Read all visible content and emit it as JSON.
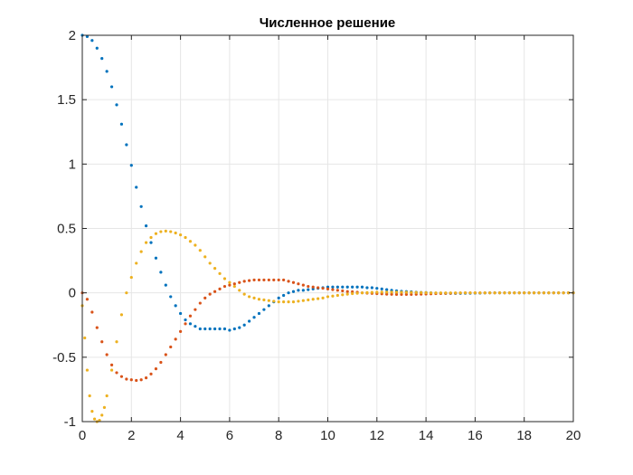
{
  "chart_data": {
    "type": "scatter",
    "title": "Численное решение",
    "xlabel": "",
    "ylabel": "",
    "xlim": [
      0,
      20
    ],
    "ylim": [
      -1,
      2
    ],
    "xticks": [
      0,
      2,
      4,
      6,
      8,
      10,
      12,
      14,
      16,
      18,
      20
    ],
    "yticks": [
      -1,
      -0.5,
      0,
      0.5,
      1,
      1.5,
      2
    ],
    "xtick_labels": [
      "0",
      "2",
      "4",
      "6",
      "8",
      "10",
      "12",
      "14",
      "16",
      "18",
      "20"
    ],
    "ytick_labels": [
      "-1",
      "-0.5",
      "0",
      "0.5",
      "1",
      "1.5",
      "2"
    ],
    "grid": true,
    "legend": "none",
    "series": [
      {
        "color": "#0072BD",
        "x": [
          0,
          0.2,
          0.4,
          0.6,
          0.8,
          1.0,
          1.2,
          1.4,
          1.6,
          1.8,
          2.0,
          2.2,
          2.4,
          2.6,
          2.8,
          3.0,
          3.2,
          3.4,
          3.6,
          3.8,
          4.0,
          4.2,
          4.4,
          4.6,
          4.8,
          5.0,
          5.2,
          5.4,
          5.6,
          5.8,
          6.0,
          6.2,
          6.4,
          6.6,
          6.8,
          7.0,
          7.2,
          7.4,
          7.6,
          7.8,
          8.0,
          8.2,
          8.4,
          8.6,
          8.8,
          9.0,
          9.2,
          9.4,
          9.6,
          9.8,
          10.0,
          10.2,
          10.4,
          10.6,
          10.8,
          11.0,
          11.2,
          11.4,
          11.6,
          11.8,
          12.0,
          12.2,
          12.4,
          12.6,
          12.8,
          13.0,
          13.2,
          13.4,
          13.6,
          13.8,
          14.0,
          14.2,
          14.4,
          14.6,
          14.8,
          15.0,
          15.2,
          15.4,
          15.6,
          15.8,
          16.0,
          16.2,
          16.4,
          16.6,
          16.8,
          17.0,
          17.2,
          17.4,
          17.6,
          17.8,
          18.0,
          18.2,
          18.4,
          18.6,
          18.8,
          19.0,
          19.2,
          19.4,
          19.6,
          19.8,
          20.0
        ],
        "y": [
          2.0,
          1.99,
          1.96,
          1.9,
          1.82,
          1.72,
          1.6,
          1.46,
          1.31,
          1.15,
          0.99,
          0.82,
          0.67,
          0.52,
          0.39,
          0.27,
          0.16,
          0.06,
          -0.03,
          -0.1,
          -0.16,
          -0.21,
          -0.24,
          -0.26,
          -0.28,
          -0.28,
          -0.28,
          -0.28,
          -0.28,
          -0.28,
          -0.29,
          -0.28,
          -0.27,
          -0.25,
          -0.22,
          -0.19,
          -0.16,
          -0.13,
          -0.1,
          -0.07,
          -0.04,
          -0.02,
          0.0,
          0.01,
          0.02,
          0.02,
          0.025,
          0.03,
          0.035,
          0.04,
          0.045,
          0.045,
          0.045,
          0.045,
          0.045,
          0.045,
          0.045,
          0.045,
          0.04,
          0.04,
          0.035,
          0.03,
          0.025,
          0.02,
          0.015,
          0.012,
          0.01,
          0.008,
          0.005,
          0.003,
          0.002,
          0.0,
          -0.002,
          -0.003,
          -0.004,
          -0.004,
          -0.004,
          -0.004,
          -0.003,
          -0.003,
          -0.002,
          -0.002,
          -0.001,
          0.0,
          0.0,
          0.0,
          0.0,
          0.0,
          0.0,
          0.0,
          0.0,
          0.0,
          0.0,
          0.0,
          0.0,
          0.0,
          0.0,
          0.0,
          0.0,
          0.0,
          0.0
        ]
      },
      {
        "color": "#D95319",
        "x": [
          0,
          0.2,
          0.4,
          0.6,
          0.8,
          1.0,
          1.2,
          1.4,
          1.6,
          1.8,
          2.0,
          2.2,
          2.4,
          2.6,
          2.8,
          3.0,
          3.2,
          3.4,
          3.6,
          3.8,
          4.0,
          4.2,
          4.4,
          4.6,
          4.8,
          5.0,
          5.2,
          5.4,
          5.6,
          5.8,
          6.0,
          6.2,
          6.4,
          6.6,
          6.8,
          7.0,
          7.2,
          7.4,
          7.6,
          7.8,
          8.0,
          8.2,
          8.4,
          8.6,
          8.8,
          9.0,
          9.2,
          9.4,
          9.6,
          9.8,
          10.0,
          10.2,
          10.4,
          10.6,
          10.8,
          11.0,
          11.2,
          11.4,
          11.6,
          11.8,
          12.0,
          12.2,
          12.4,
          12.6,
          12.8,
          13.0,
          13.2,
          13.4,
          13.6,
          13.8,
          14.0,
          14.2,
          14.4,
          14.6,
          14.8,
          15.0,
          15.2,
          15.4,
          15.6,
          15.8,
          16.0,
          16.2,
          16.4,
          16.6,
          16.8,
          17.0,
          17.2,
          17.4,
          17.6,
          17.8,
          18.0,
          18.2,
          18.4,
          18.6,
          18.8,
          19.0,
          19.2,
          19.4,
          19.6,
          19.8,
          20.0
        ],
        "y": [
          0.0,
          -0.05,
          -0.15,
          -0.27,
          -0.38,
          -0.48,
          -0.56,
          -0.62,
          -0.65,
          -0.67,
          -0.675,
          -0.68,
          -0.675,
          -0.66,
          -0.63,
          -0.59,
          -0.54,
          -0.48,
          -0.42,
          -0.36,
          -0.3,
          -0.24,
          -0.18,
          -0.13,
          -0.08,
          -0.04,
          -0.01,
          0.01,
          0.03,
          0.05,
          0.06,
          0.07,
          0.08,
          0.09,
          0.095,
          0.1,
          0.1,
          0.1,
          0.1,
          0.1,
          0.1,
          0.1,
          0.09,
          0.08,
          0.07,
          0.06,
          0.05,
          0.045,
          0.04,
          0.035,
          0.03,
          0.025,
          0.02,
          0.015,
          0.01,
          0.008,
          0.005,
          0.0,
          -0.002,
          -0.004,
          -0.006,
          -0.008,
          -0.01,
          -0.011,
          -0.012,
          -0.012,
          -0.012,
          -0.012,
          -0.011,
          -0.01,
          -0.009,
          -0.008,
          -0.006,
          -0.005,
          -0.004,
          -0.003,
          -0.002,
          -0.001,
          0.0,
          0.0,
          0.0,
          0.0,
          0.0,
          0.0,
          0.0,
          0.0,
          0.0,
          0.0,
          0.0,
          0.0,
          0.0,
          0.0,
          0.0,
          0.0,
          0.0,
          0.0,
          0.0,
          0.0,
          0.0,
          0.0,
          0.0
        ]
      },
      {
        "color": "#EDB120",
        "x": [
          0,
          0.1,
          0.2,
          0.3,
          0.4,
          0.5,
          0.6,
          0.7,
          0.8,
          0.9,
          1.0,
          1.2,
          1.4,
          1.6,
          1.8,
          2.0,
          2.2,
          2.4,
          2.6,
          2.8,
          3.0,
          3.2,
          3.4,
          3.6,
          3.8,
          4.0,
          4.2,
          4.4,
          4.6,
          4.8,
          5.0,
          5.2,
          5.4,
          5.6,
          5.8,
          6.0,
          6.2,
          6.4,
          6.6,
          6.8,
          7.0,
          7.2,
          7.4,
          7.6,
          7.8,
          8.0,
          8.2,
          8.4,
          8.6,
          8.8,
          9.0,
          9.2,
          9.4,
          9.6,
          9.8,
          10.0,
          10.2,
          10.4,
          10.6,
          10.8,
          11.0,
          11.2,
          11.4,
          11.6,
          11.8,
          12.0,
          12.2,
          12.4,
          12.6,
          12.8,
          13.0,
          13.2,
          13.4,
          13.6,
          13.8,
          14.0,
          14.2,
          14.4,
          14.6,
          14.8,
          15.0,
          15.2,
          15.4,
          15.6,
          15.8,
          16.0,
          16.2,
          16.4,
          16.6,
          16.8,
          17.0,
          17.2,
          17.4,
          17.6,
          17.8,
          18.0,
          18.2,
          18.4,
          18.6,
          18.8,
          19.0,
          19.2,
          19.4,
          19.6,
          19.8,
          20.0
        ],
        "y": [
          -0.1,
          -0.35,
          -0.6,
          -0.8,
          -0.92,
          -0.98,
          -1.0,
          -0.99,
          -0.95,
          -0.89,
          -0.8,
          -0.6,
          -0.38,
          -0.17,
          0.0,
          0.12,
          0.23,
          0.32,
          0.39,
          0.43,
          0.46,
          0.475,
          0.48,
          0.475,
          0.465,
          0.45,
          0.43,
          0.4,
          0.37,
          0.33,
          0.28,
          0.23,
          0.19,
          0.15,
          0.11,
          0.08,
          0.05,
          0.02,
          -0.01,
          -0.03,
          -0.04,
          -0.05,
          -0.055,
          -0.06,
          -0.065,
          -0.07,
          -0.07,
          -0.07,
          -0.07,
          -0.065,
          -0.06,
          -0.055,
          -0.05,
          -0.045,
          -0.04,
          -0.03,
          -0.025,
          -0.02,
          -0.015,
          -0.01,
          -0.006,
          -0.003,
          0.0,
          0.002,
          0.004,
          0.005,
          0.006,
          0.006,
          0.006,
          0.006,
          0.005,
          0.005,
          0.004,
          0.003,
          0.002,
          0.001,
          0.0,
          0.0,
          0.0,
          0.0,
          0.0,
          0.0,
          0.0,
          0.0,
          0.0,
          0.0,
          0.0,
          0.0,
          0.0,
          0.0,
          0.0,
          0.0,
          0.0,
          0.0,
          0.0,
          0.0,
          0.0,
          0.0,
          0.0,
          0.0,
          0.0,
          0.0,
          0.0,
          0.0,
          0.0,
          0.0
        ]
      }
    ]
  }
}
